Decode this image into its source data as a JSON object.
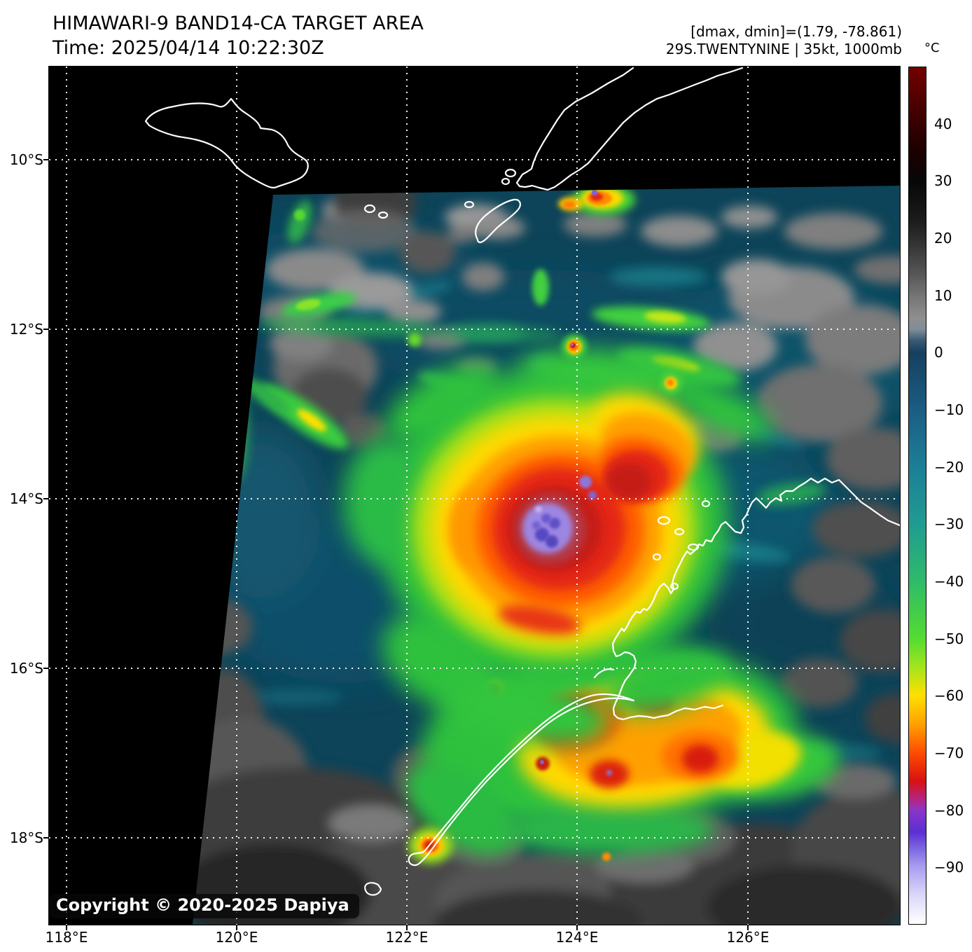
{
  "header": {
    "title": "HIMAWARI-9 BAND14-CA TARGET AREA",
    "time_label": "Time: 2025/04/14 10:22:30Z",
    "stats_line": "[dmax, dmin]=(1.79, -78.861)",
    "storm_line": "29S.TWENTYNINE | 35kt, 1000mb"
  },
  "axes": {
    "lat_labels": [
      "10°S",
      "12°S",
      "14°S",
      "16°S",
      "18°S"
    ],
    "lon_labels": [
      "118°E",
      "120°E",
      "122°E",
      "124°E",
      "126°E"
    ]
  },
  "colorbar": {
    "unit": "°C",
    "tick_labels": [
      "40",
      "30",
      "20",
      "10",
      "0",
      "−10",
      "−20",
      "−30",
      "−40",
      "−50",
      "−60",
      "−70",
      "−80",
      "−90"
    ],
    "value_max": 50,
    "value_min": -100
  },
  "map_overlay": {
    "copyright": "Copyright © 2020-2025 Dapiya"
  }
}
